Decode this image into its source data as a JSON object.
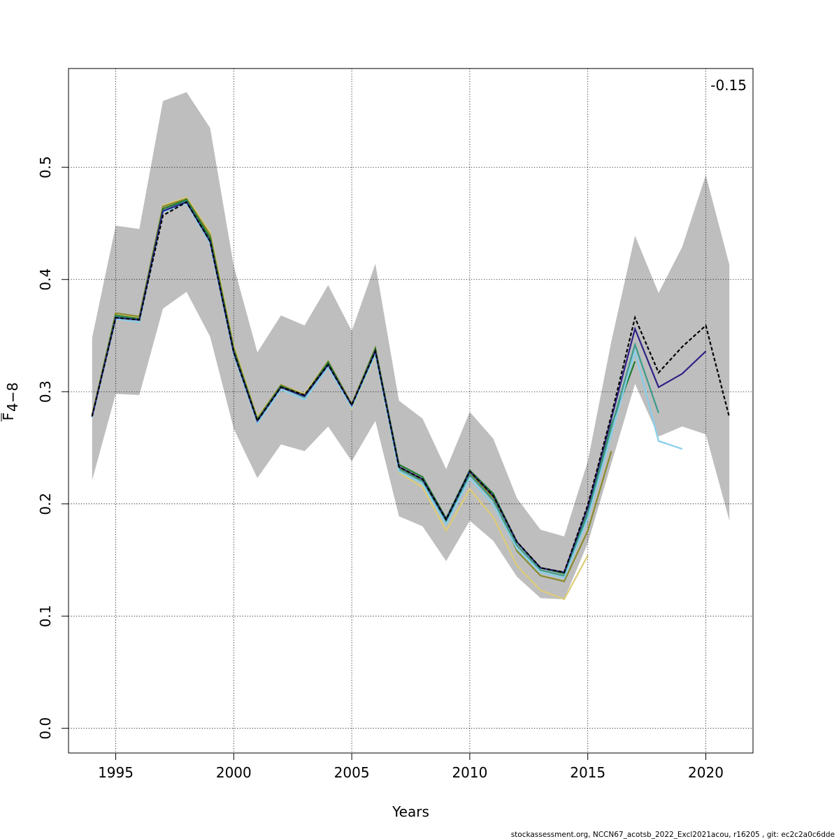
{
  "chart_data": {
    "type": "line",
    "title": "",
    "xlabel": "Years",
    "ylabel_main": "F",
    "ylabel_sub": "4−8",
    "annotation": "-0.15",
    "footer": "stockassessment.org, NCCN67_acotsb_2022_Excl2021acou, r16205 , git: ec2c2a0c6dde",
    "xlim": [
      1993,
      2022
    ],
    "ylim": [
      -0.022,
      0.588
    ],
    "x_ticks": [
      1995,
      2000,
      2005,
      2010,
      2015,
      2020
    ],
    "y_ticks": [
      0.0,
      0.1,
      0.2,
      0.3,
      0.4,
      0.5
    ],
    "y_tick_labels": [
      "0.0",
      "0.1",
      "0.2",
      "0.3",
      "0.4",
      "0.5"
    ],
    "grid": true,
    "band": {
      "color": "#bebebe",
      "x": [
        1994,
        1995,
        1996,
        1997,
        1998,
        1999,
        2000,
        2001,
        2002,
        2003,
        2004,
        2005,
        2006,
        2007,
        2008,
        2009,
        2010,
        2011,
        2012,
        2013,
        2014,
        2015,
        2016,
        2017,
        2018,
        2019,
        2020,
        2021
      ],
      "lower": [
        0.221,
        0.298,
        0.297,
        0.374,
        0.389,
        0.349,
        0.267,
        0.223,
        0.253,
        0.247,
        0.269,
        0.238,
        0.274,
        0.189,
        0.18,
        0.149,
        0.185,
        0.167,
        0.135,
        0.116,
        0.115,
        0.165,
        0.236,
        0.307,
        0.26,
        0.269,
        0.262,
        0.185
      ],
      "upper": [
        0.348,
        0.448,
        0.445,
        0.559,
        0.567,
        0.535,
        0.412,
        0.335,
        0.368,
        0.359,
        0.395,
        0.354,
        0.414,
        0.292,
        0.276,
        0.231,
        0.282,
        0.258,
        0.205,
        0.177,
        0.171,
        0.238,
        0.345,
        0.439,
        0.388,
        0.429,
        0.493,
        0.413
      ]
    },
    "series": [
      {
        "color": "#000000",
        "dashed": true,
        "x": [
          1994,
          1995,
          1996,
          1997,
          1998,
          1999,
          2000,
          2001,
          2002,
          2003,
          2004,
          2005,
          2006,
          2007,
          2008,
          2009,
          2010,
          2011,
          2012,
          2013,
          2014,
          2015,
          2016,
          2017,
          2018,
          2019,
          2020,
          2021
        ],
        "values": [
          0.278,
          0.366,
          0.364,
          0.457,
          0.469,
          0.434,
          0.335,
          0.274,
          0.304,
          0.297,
          0.324,
          0.288,
          0.336,
          0.233,
          0.222,
          0.186,
          0.229,
          0.207,
          0.166,
          0.143,
          0.139,
          0.199,
          0.279,
          0.366,
          0.317,
          0.34,
          0.359,
          0.277
        ]
      },
      {
        "color": "#2e2185",
        "dashed": false,
        "x": [
          1994,
          1995,
          1996,
          1997,
          1998,
          1999,
          2000,
          2001,
          2002,
          2003,
          2004,
          2005,
          2006,
          2007,
          2008,
          2009,
          2010,
          2011,
          2012,
          2013,
          2014,
          2015,
          2016,
          2017,
          2018,
          2019,
          2020
        ],
        "values": [
          0.278,
          0.366,
          0.364,
          0.461,
          0.469,
          0.434,
          0.335,
          0.274,
          0.304,
          0.296,
          0.324,
          0.288,
          0.336,
          0.233,
          0.222,
          0.186,
          0.229,
          0.207,
          0.166,
          0.143,
          0.139,
          0.197,
          0.276,
          0.356,
          0.304,
          0.316,
          0.336
        ]
      },
      {
        "color": "#87ceeb",
        "dashed": false,
        "x": [
          1994,
          1995,
          1996,
          1997,
          1998,
          1999,
          2000,
          2001,
          2002,
          2003,
          2004,
          2005,
          2006,
          2007,
          2008,
          2009,
          2010,
          2011,
          2012,
          2013,
          2014,
          2015,
          2016,
          2017,
          2018,
          2019
        ],
        "values": [
          0.277,
          0.365,
          0.362,
          0.46,
          0.468,
          0.432,
          0.333,
          0.272,
          0.302,
          0.293,
          0.322,
          0.286,
          0.333,
          0.229,
          0.218,
          0.182,
          0.223,
          0.199,
          0.16,
          0.139,
          0.134,
          0.187,
          0.262,
          0.336,
          0.256,
          0.249
        ]
      },
      {
        "color": "#3a9c8c",
        "dashed": false,
        "x": [
          1994,
          1995,
          1996,
          1997,
          1998,
          1999,
          2000,
          2001,
          2002,
          2003,
          2004,
          2005,
          2006,
          2007,
          2008,
          2009,
          2010,
          2011,
          2012,
          2013,
          2014,
          2015,
          2016,
          2017,
          2018
        ],
        "values": [
          0.278,
          0.367,
          0.364,
          0.461,
          0.47,
          0.434,
          0.335,
          0.274,
          0.304,
          0.295,
          0.324,
          0.287,
          0.335,
          0.231,
          0.22,
          0.184,
          0.226,
          0.203,
          0.163,
          0.141,
          0.136,
          0.191,
          0.268,
          0.342,
          0.281
        ]
      },
      {
        "color": "#1f7a30",
        "dashed": false,
        "x": [
          1994,
          1995,
          1996,
          1997,
          1998,
          1999,
          2000,
          2001,
          2002,
          2003,
          2004,
          2005,
          2006,
          2007,
          2008,
          2009,
          2010,
          2011,
          2012,
          2013,
          2014,
          2015,
          2016,
          2017
        ],
        "values": [
          0.278,
          0.368,
          0.365,
          0.463,
          0.471,
          0.437,
          0.337,
          0.275,
          0.305,
          0.296,
          0.326,
          0.288,
          0.338,
          0.235,
          0.224,
          0.187,
          0.23,
          0.209,
          0.166,
          0.143,
          0.138,
          0.192,
          0.27,
          0.327
        ]
      },
      {
        "color": "#8a8a2e",
        "dashed": false,
        "x": [
          1994,
          1995,
          1996,
          1997,
          1998,
          1999,
          2000,
          2001,
          2002,
          2003,
          2004,
          2005,
          2006,
          2007,
          2008,
          2009,
          2010,
          2011,
          2012,
          2013,
          2014,
          2015,
          2016
        ],
        "values": [
          0.279,
          0.37,
          0.367,
          0.465,
          0.472,
          0.44,
          0.339,
          0.276,
          0.306,
          0.297,
          0.327,
          0.289,
          0.339,
          0.232,
          0.221,
          0.185,
          0.227,
          0.205,
          0.158,
          0.136,
          0.131,
          0.176,
          0.247
        ]
      },
      {
        "color": "#ddcc77",
        "dashed": false,
        "x": [
          1994,
          1995,
          1996,
          1997,
          1998,
          1999,
          2000,
          2001,
          2002,
          2003,
          2004,
          2005,
          2006,
          2007,
          2008,
          2009,
          2010,
          2011,
          2012,
          2013,
          2014,
          2015
        ],
        "values": [
          0.28,
          0.369,
          0.366,
          0.466,
          0.473,
          0.442,
          0.341,
          0.277,
          0.306,
          0.298,
          0.327,
          0.285,
          0.332,
          0.228,
          0.215,
          0.176,
          0.213,
          0.188,
          0.145,
          0.123,
          0.115,
          0.154
        ]
      }
    ]
  }
}
